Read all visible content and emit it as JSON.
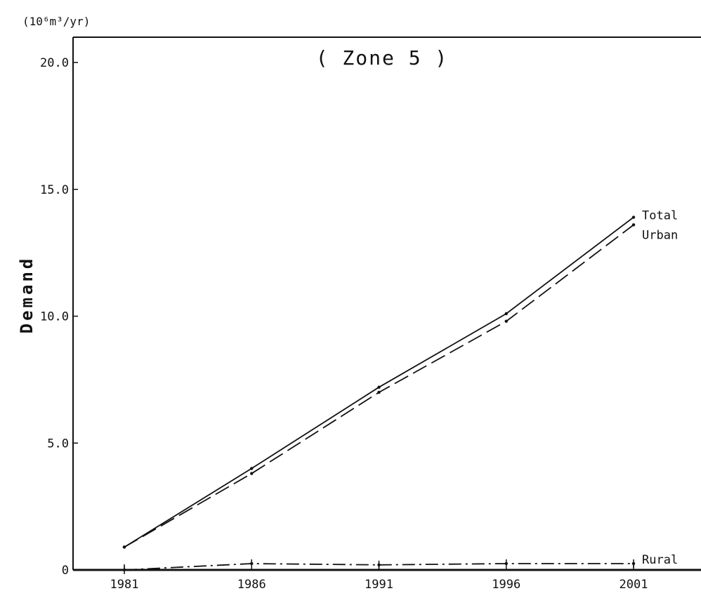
{
  "chart_data": {
    "type": "line",
    "title": "( Zone 5 )",
    "ylabel": "Demand",
    "yunit": "(10⁶m³/yr)",
    "xlabel": "",
    "x": [
      "1981",
      "1986",
      "1991",
      "1996",
      "2001"
    ],
    "ylim": [
      0,
      20.0
    ],
    "yticks": [
      {
        "value": 0,
        "label": "0"
      },
      {
        "value": 5.0,
        "label": "5.0"
      },
      {
        "value": 10.0,
        "label": "10.0"
      },
      {
        "value": 15.0,
        "label": "15.0"
      },
      {
        "value": 20.0,
        "label": "20.0"
      }
    ],
    "series": [
      {
        "name": "Total",
        "values": [
          0.9,
          4.0,
          7.2,
          10.1,
          13.9
        ],
        "style": "solid",
        "color": "#111111"
      },
      {
        "name": "Urban",
        "values": [
          0.9,
          3.8,
          7.0,
          9.8,
          13.6
        ],
        "style": "dashed",
        "color": "#111111"
      },
      {
        "name": "Rural",
        "values": [
          0.0,
          0.25,
          0.2,
          0.25,
          0.25
        ],
        "style": "dashdot",
        "color": "#111111"
      }
    ],
    "grid": false,
    "legend": "inline-right"
  }
}
